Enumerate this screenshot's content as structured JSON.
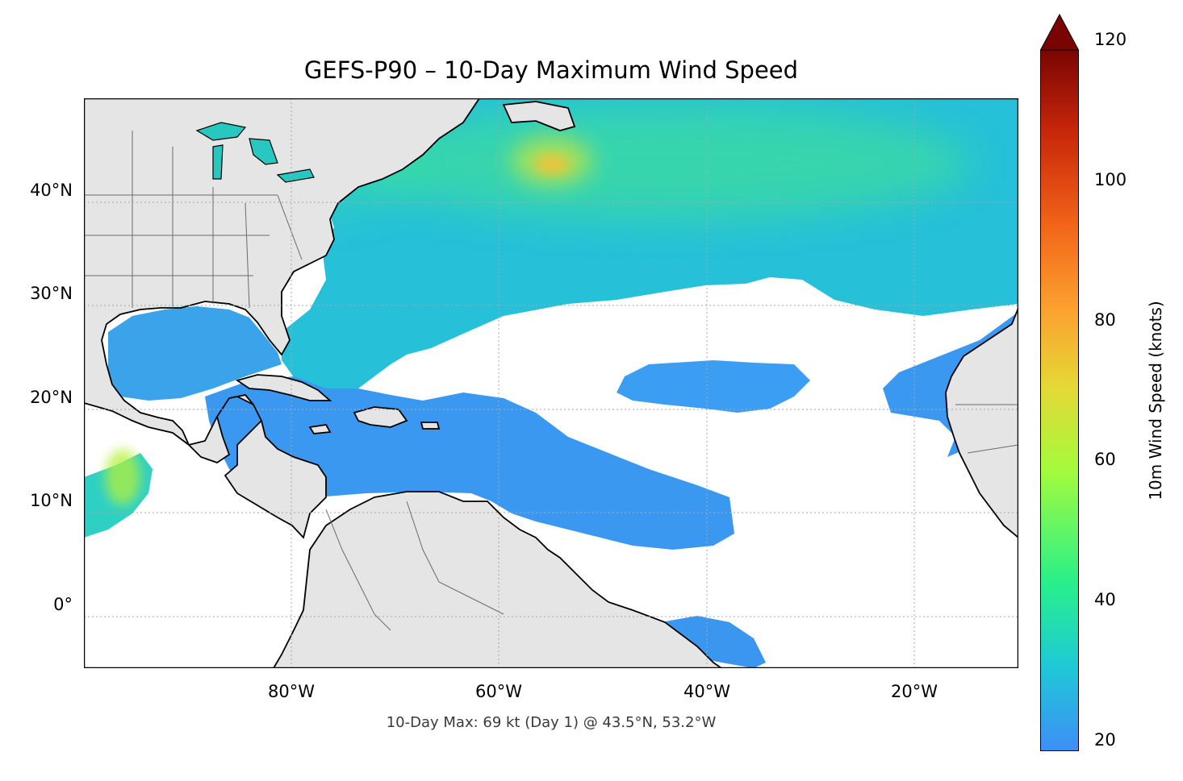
{
  "title": "GEFS-P90 – 10-Day Maximum Wind Speed",
  "footer_note": "10-Day Max: 69 kt (Day 1) @ 43.5°N, 53.2°W",
  "map": {
    "lon_range": [
      -100,
      -10
    ],
    "lat_range": [
      -5,
      50
    ],
    "lat_ticks": [
      {
        "value": 40,
        "label": "40°N"
      },
      {
        "value": 30,
        "label": "30°N"
      },
      {
        "value": 20,
        "label": "20°N"
      },
      {
        "value": 10,
        "label": "10°N"
      },
      {
        "value": 0,
        "label": "0°"
      }
    ],
    "lon_ticks": [
      {
        "value": -80,
        "label": "80°W"
      },
      {
        "value": -60,
        "label": "60°W"
      },
      {
        "value": -40,
        "label": "40°W"
      },
      {
        "value": -20,
        "label": "20°W"
      }
    ],
    "gridlines": "dotted",
    "land_color": "#e5e5e5",
    "ocean_color": "#ffffff",
    "max_point": {
      "lat": 43.5,
      "lon": -53.2,
      "value_kt": 69
    }
  },
  "colorbar": {
    "label": "10m Wind Speed (knots)",
    "min": 20,
    "max": 120,
    "extend": "max",
    "colormap": "turbo",
    "tick_labels": [
      "20",
      "40",
      "60",
      "80",
      "100",
      "120"
    ],
    "colors": [
      "#3e8ef7",
      "#1ec9d6",
      "#28f08a",
      "#a4fb3c",
      "#e5d836",
      "#fca12f",
      "#f26419",
      "#c9280a",
      "#7a0403"
    ]
  }
}
